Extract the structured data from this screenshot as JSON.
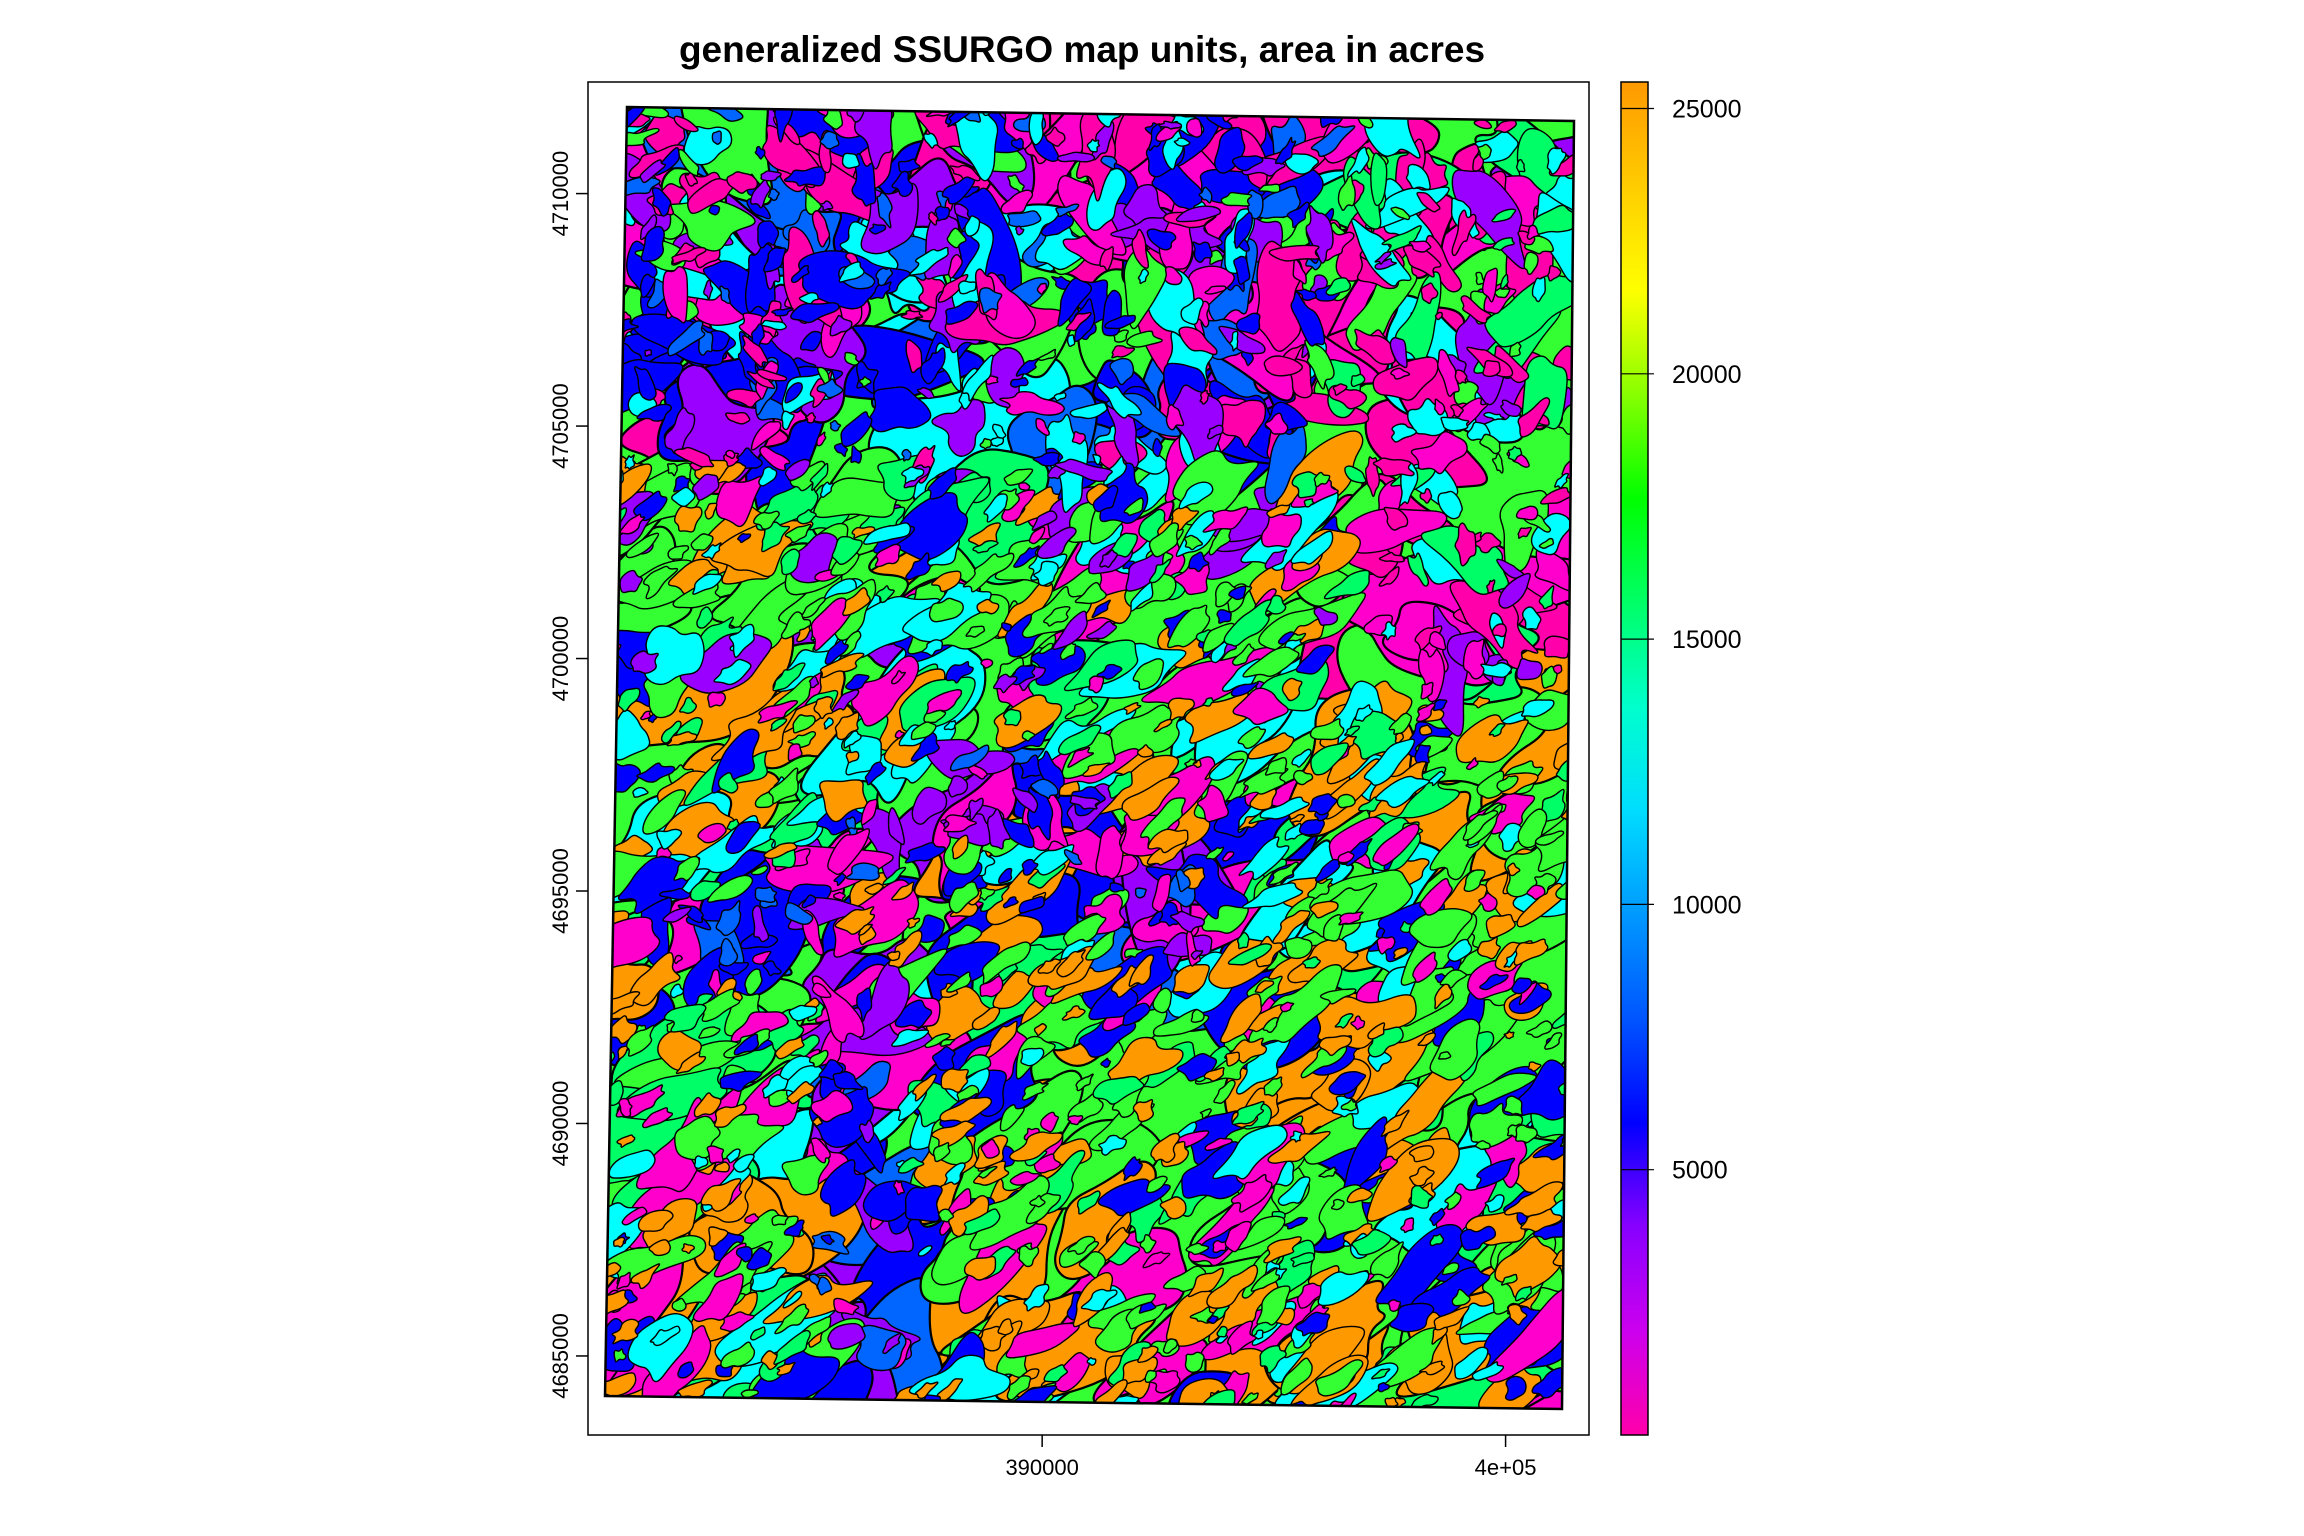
{
  "chart_data": {
    "type": "choropleth-map",
    "title": "generalized SSURGO map units, area in acres",
    "x_axis": {
      "ticks": [
        {
          "value": 390000,
          "label": "390000"
        },
        {
          "value": 400000,
          "label": "4e+05"
        }
      ],
      "range": [
        380200,
        401800
      ]
    },
    "y_axis": {
      "ticks": [
        {
          "value": 4685000,
          "label": "4685000"
        },
        {
          "value": 4690000,
          "label": "4690000"
        },
        {
          "value": 4695000,
          "label": "4695000"
        },
        {
          "value": 4700000,
          "label": "4700000"
        },
        {
          "value": 4705000,
          "label": "4705000"
        },
        {
          "value": 4710000,
          "label": "4710000"
        }
      ],
      "range": [
        4683300,
        4712400
      ]
    },
    "colorbar": {
      "range": [
        0,
        25500
      ],
      "ticks": [
        {
          "value": 5000,
          "label": "5000"
        },
        {
          "value": 10000,
          "label": "10000"
        },
        {
          "value": 15000,
          "label": "15000"
        },
        {
          "value": 20000,
          "label": "20000"
        },
        {
          "value": 25000,
          "label": "25000"
        }
      ],
      "palette": [
        "#ff00aa",
        "#cc00ee",
        "#8800ff",
        "#0000ff",
        "#0055ff",
        "#0099ff",
        "#00ddff",
        "#00ffcc",
        "#00ff66",
        "#00ff00",
        "#88ff00",
        "#ffff00",
        "#ffcc00",
        "#ff9900"
      ]
    },
    "region_colors": {
      "orange": "#ff9900",
      "green": "#33ff33",
      "light_green": "#00ff66",
      "cyan": "#00ffff",
      "blue": "#0000ff",
      "mid_blue": "#0066ff",
      "purple": "#9900ff",
      "magenta": "#ff00cc",
      "pink": "#ff00aa"
    }
  }
}
